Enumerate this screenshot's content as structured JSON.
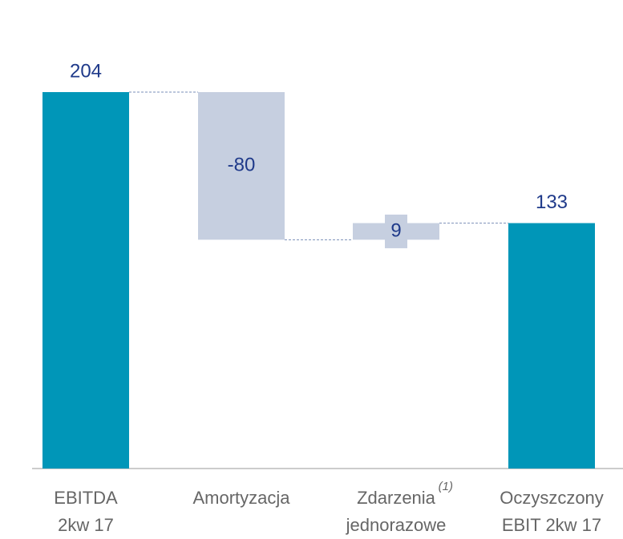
{
  "chart_data": {
    "type": "waterfall",
    "categories": [
      [
        "EBITDA",
        "2kw 17"
      ],
      [
        "Amortyzacja"
      ],
      [
        "Zdarzenia",
        "jednorazowe"
      ],
      [
        "Oczyszczony",
        "EBIT 2kw 17"
      ]
    ],
    "category_notes": [
      null,
      null,
      "(1)",
      null
    ],
    "values": [
      204,
      -80,
      9,
      133
    ],
    "totals": [
      true,
      false,
      false,
      true
    ],
    "total_color": "#0096b8",
    "delta_color": "#c6cfe0",
    "label_color": "#1f3a8a"
  }
}
